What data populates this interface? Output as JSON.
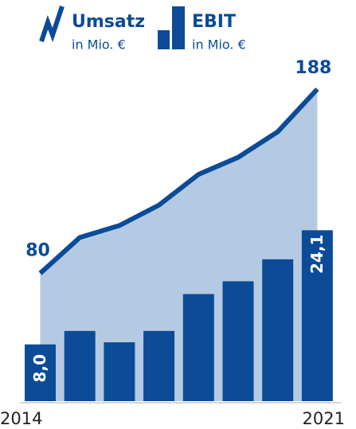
{
  "chart_data": {
    "type": "bar-line",
    "categories": [
      "2014",
      null,
      null,
      null,
      null,
      null,
      null,
      "2021"
    ],
    "series": [
      {
        "name": "Umsatz",
        "unit": "in Mio. €",
        "type": "area-line",
        "axis": "y2",
        "color": "#0b4b98",
        "fill": "#b4cae3",
        "values": [
          80,
          101,
          108,
          120,
          138,
          148,
          163,
          188
        ],
        "value_labels": [
          "80",
          null,
          null,
          null,
          null,
          null,
          null,
          "188"
        ]
      },
      {
        "name": "EBIT",
        "unit": "in Mio. €",
        "type": "bar",
        "color": "#0b4b98",
        "values": [
          8.0,
          9.9,
          8.3,
          9.9,
          15.1,
          16.9,
          20.0,
          24.1
        ],
        "value_labels": [
          "8,0",
          null,
          null,
          null,
          null,
          null,
          null,
          "24,1"
        ]
      }
    ],
    "ylim": [
      0,
      44
    ],
    "y2lim": [
      5,
      188
    ]
  }
}
